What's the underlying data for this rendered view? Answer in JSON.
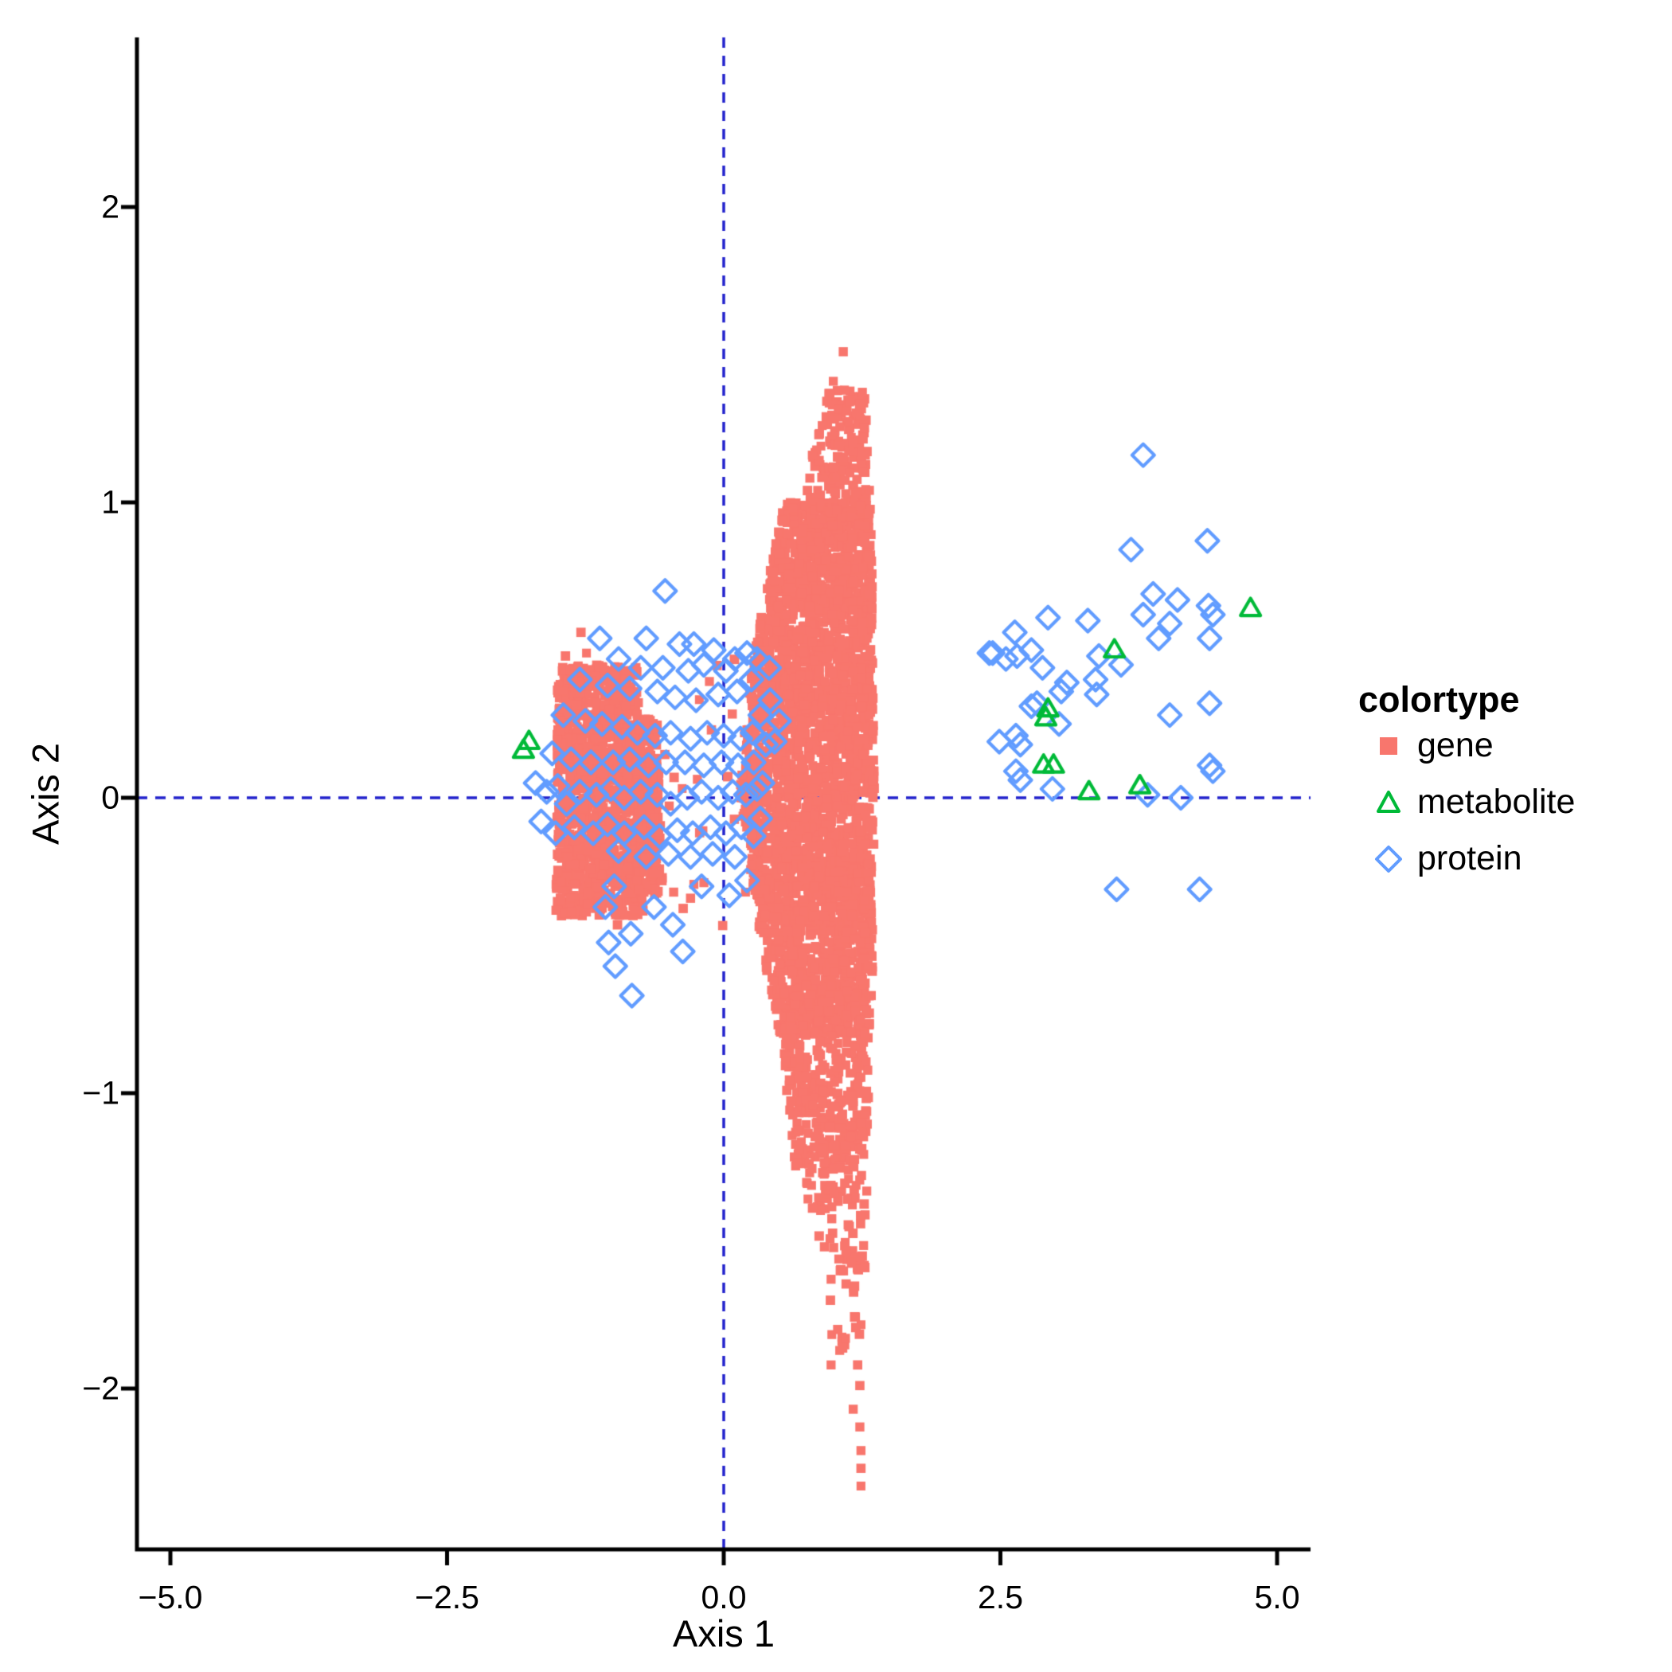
{
  "chart_data": {
    "type": "scatter",
    "title": "",
    "xlabel": "Axis 1",
    "ylabel": "Axis 2",
    "xlim": [
      -5.3,
      5.3
    ],
    "ylim": [
      -2.55,
      2.57
    ],
    "grid": false,
    "x_ticks": {
      "values": [
        -5.0,
        -2.5,
        0.0,
        2.5,
        5.0
      ],
      "labels": [
        "−5.0",
        "−2.5",
        "0.0",
        "2.5",
        "5.0"
      ]
    },
    "y_ticks": {
      "values": [
        -2,
        -1,
        0,
        1,
        2
      ],
      "labels": [
        "−2",
        "−1",
        "0",
        "1",
        "2"
      ]
    },
    "reference_lines": {
      "vertical_x": 0,
      "horizontal_y": 0,
      "style": "dashed",
      "color": "#2121CC"
    },
    "colors": {
      "gene": "#F8766D",
      "metabolite": "#00BA38",
      "protein": "#619CFF",
      "axis": "#000000",
      "background": "#FFFFFF"
    },
    "legend": {
      "title": "colortype",
      "position": "right",
      "entries": [
        {
          "label": "gene",
          "marker": "filled-square",
          "color": "#F8766D"
        },
        {
          "label": "metabolite",
          "marker": "open-triangle",
          "color": "#00BA38"
        },
        {
          "label": "protein",
          "marker": "open-diamond",
          "color": "#619CFF"
        }
      ]
    },
    "series": [
      {
        "name": "gene",
        "marker": "filled-square",
        "color": "#F8766D",
        "note": "Dense overplotted cloud of thousands of points: a solid left block (x -1.5..-0.6, y -0.4..0.45) and a large slanted right band (x 0.15..1.36, y -1.9..1.4) with a sparse tail down to y=-2.33; reproduced via region densities plus visible outliers.",
        "dense_bands": [
          {
            "y": [
              1.0,
              1.38
            ],
            "x_left": [
              0.7,
              0.95
            ],
            "x_right": [
              1.33,
              1.27
            ],
            "count": 150
          },
          {
            "y": [
              0.5,
              1.0
            ],
            "x_left": [
              0.27,
              0.55
            ],
            "x_right": [
              1.35,
              1.33
            ],
            "count": 800
          },
          {
            "y": [
              0.0,
              0.5
            ],
            "x_left": [
              0.15,
              0.27
            ],
            "x_right": [
              1.36,
              1.35
            ],
            "count": 900
          },
          {
            "y": [
              -0.45,
              0.0
            ],
            "x_left": [
              0.32,
              0.15
            ],
            "x_right": [
              1.35,
              1.36
            ],
            "count": 820
          },
          {
            "y": [
              -0.8,
              -0.45
            ],
            "x_left": [
              0.5,
              0.32
            ],
            "x_right": [
              1.33,
              1.35
            ],
            "count": 500
          },
          {
            "y": [
              -1.25,
              -0.8
            ],
            "x_left": [
              0.62,
              0.52
            ],
            "x_right": [
              1.3,
              1.33
            ],
            "count": 280
          },
          {
            "y": [
              -1.62,
              -1.25
            ],
            "x_left": [
              0.88,
              0.7
            ],
            "x_right": [
              1.28,
              1.3
            ],
            "count": 80
          },
          {
            "y": [
              -1.88,
              -1.62
            ],
            "x_left": [
              0.95,
              0.92
            ],
            "x_right": [
              1.25,
              1.28
            ],
            "count": 16
          },
          {
            "y": [
              -0.4,
              0.45
            ],
            "x_left": [
              -1.52,
              -1.5
            ],
            "x_right": [
              -0.72,
              -0.78
            ],
            "count": 1150
          },
          {
            "y": [
              -0.33,
              0.27
            ],
            "x_left": [
              -0.8,
              -0.77
            ],
            "x_right": [
              -0.55,
              -0.6
            ],
            "count": 240
          },
          {
            "y": [
              -0.55,
              0.5
            ],
            "x_left": [
              -0.58,
              -0.55
            ],
            "x_right": [
              0.24,
              0.2
            ],
            "count": 24
          }
        ],
        "outlier_points": [
          [
            1.08,
            1.51
          ],
          [
            0.99,
            1.41
          ],
          [
            1.09,
            1.38
          ],
          [
            1.11,
            1.31
          ],
          [
            0.89,
            1.26
          ],
          [
            0.8,
            1.16
          ],
          [
            1.08,
            1.15
          ],
          [
            0.99,
            1.12
          ],
          [
            1.14,
            1.1
          ],
          [
            -1.29,
            0.56
          ],
          [
            -1.43,
            0.48
          ],
          [
            -1.24,
            0.49
          ],
          [
            -1.23,
            -0.36
          ],
          [
            -0.96,
            -0.43
          ],
          [
            -0.3,
            -0.34
          ],
          [
            -1.47,
            -0.35
          ],
          [
            0.97,
            -1.63
          ],
          [
            1.03,
            -1.8
          ],
          [
            1.1,
            -1.83
          ],
          [
            0.97,
            -1.92
          ],
          [
            1.21,
            -1.92
          ],
          [
            1.23,
            -1.99
          ],
          [
            1.17,
            -2.07
          ],
          [
            1.23,
            -2.13
          ],
          [
            1.24,
            -2.21
          ],
          [
            1.24,
            -2.27
          ],
          [
            1.24,
            -2.33
          ]
        ]
      },
      {
        "name": "metabolite",
        "marker": "open-triangle",
        "color": "#00BA38",
        "points": [
          [
            -1.81,
            0.16
          ],
          [
            -1.76,
            0.19
          ],
          [
            2.93,
            0.3
          ],
          [
            2.91,
            0.27
          ],
          [
            2.89,
            0.11
          ],
          [
            2.98,
            0.11
          ],
          [
            3.3,
            0.02
          ],
          [
            3.76,
            0.04
          ],
          [
            3.53,
            0.5
          ],
          [
            4.76,
            0.64
          ]
        ]
      },
      {
        "name": "protein",
        "marker": "open-diamond",
        "color": "#619CFF",
        "points": [
          [
            -0.53,
            0.7
          ],
          [
            -1.12,
            0.54
          ],
          [
            -0.7,
            0.54
          ],
          [
            -0.4,
            0.52
          ],
          [
            -0.27,
            0.52
          ],
          [
            -0.09,
            0.5
          ],
          [
            0.21,
            0.49
          ],
          [
            -0.95,
            0.47
          ],
          [
            -0.75,
            0.44
          ],
          [
            -0.55,
            0.44
          ],
          [
            -0.32,
            0.43
          ],
          [
            -0.18,
            0.45
          ],
          [
            0.02,
            0.43
          ],
          [
            0.1,
            0.47
          ],
          [
            0.3,
            0.47
          ],
          [
            0.41,
            0.44
          ],
          [
            0.25,
            0.4
          ],
          [
            -1.3,
            0.4
          ],
          [
            -1.05,
            0.38
          ],
          [
            -0.85,
            0.37
          ],
          [
            -0.6,
            0.36
          ],
          [
            -0.44,
            0.34
          ],
          [
            -0.25,
            0.33
          ],
          [
            -0.05,
            0.35
          ],
          [
            0.12,
            0.36
          ],
          [
            0.42,
            0.33
          ],
          [
            0.5,
            0.26
          ],
          [
            0.46,
            0.19
          ],
          [
            -1.45,
            0.28
          ],
          [
            -1.25,
            0.26
          ],
          [
            -1.1,
            0.25
          ],
          [
            -0.92,
            0.24
          ],
          [
            -0.78,
            0.22
          ],
          [
            -0.62,
            0.21
          ],
          [
            -0.48,
            0.22
          ],
          [
            -0.3,
            0.2
          ],
          [
            -0.15,
            0.22
          ],
          [
            0.0,
            0.21
          ],
          [
            0.15,
            0.2
          ],
          [
            0.26,
            0.22
          ],
          [
            0.33,
            0.28
          ],
          [
            -1.55,
            0.15
          ],
          [
            -1.38,
            0.13
          ],
          [
            -1.2,
            0.12
          ],
          [
            -1.0,
            0.12
          ],
          [
            -0.85,
            0.13
          ],
          [
            -0.68,
            0.11
          ],
          [
            -0.52,
            0.12
          ],
          [
            -0.35,
            0.12
          ],
          [
            -0.18,
            0.11
          ],
          [
            -0.02,
            0.12
          ],
          [
            0.13,
            0.11
          ],
          [
            0.27,
            0.12
          ],
          [
            0.38,
            0.18
          ],
          [
            -1.7,
            0.05
          ],
          [
            -1.6,
            0.02
          ],
          [
            -1.5,
            0.04
          ],
          [
            -1.42,
            -0.02
          ],
          [
            -1.3,
            0.02
          ],
          [
            -1.15,
            0.01
          ],
          [
            -1.02,
            0.03
          ],
          [
            -0.9,
            0.0
          ],
          [
            -0.75,
            0.02
          ],
          [
            -0.6,
            0.01
          ],
          [
            -0.48,
            -0.02
          ],
          [
            -0.33,
            0.0
          ],
          [
            -0.2,
            0.02
          ],
          [
            -0.05,
            0.0
          ],
          [
            0.08,
            0.02
          ],
          [
            0.2,
            0.01
          ],
          [
            0.3,
            0.03
          ],
          [
            0.35,
            0.05
          ],
          [
            -1.65,
            -0.08
          ],
          [
            -1.52,
            -0.12
          ],
          [
            -1.35,
            -0.1
          ],
          [
            -1.18,
            -0.12
          ],
          [
            -1.05,
            -0.09
          ],
          [
            -0.9,
            -0.12
          ],
          [
            -0.72,
            -0.1
          ],
          [
            -0.58,
            -0.13
          ],
          [
            -0.42,
            -0.11
          ],
          [
            -0.28,
            -0.12
          ],
          [
            -0.12,
            -0.1
          ],
          [
            0.02,
            -0.12
          ],
          [
            0.16,
            -0.1
          ],
          [
            0.27,
            -0.13
          ],
          [
            0.33,
            -0.07
          ],
          [
            -0.95,
            -0.18
          ],
          [
            -0.7,
            -0.2
          ],
          [
            -0.5,
            -0.19
          ],
          [
            -0.3,
            -0.2
          ],
          [
            -0.1,
            -0.19
          ],
          [
            0.1,
            -0.2
          ],
          [
            -0.99,
            -0.3
          ],
          [
            -1.07,
            -0.37
          ],
          [
            -0.63,
            -0.37
          ],
          [
            -0.46,
            -0.43
          ],
          [
            -1.04,
            -0.49
          ],
          [
            -0.84,
            -0.46
          ],
          [
            -0.37,
            -0.52
          ],
          [
            -0.98,
            -0.57
          ],
          [
            -0.83,
            -0.67
          ],
          [
            0.21,
            -0.28
          ],
          [
            0.05,
            -0.33
          ],
          [
            -0.2,
            -0.3
          ],
          [
            3.79,
            1.16
          ],
          [
            3.68,
            0.84
          ],
          [
            4.37,
            0.87
          ],
          [
            3.88,
            0.69
          ],
          [
            4.1,
            0.67
          ],
          [
            4.38,
            0.65
          ],
          [
            4.42,
            0.62
          ],
          [
            3.79,
            0.62
          ],
          [
            4.03,
            0.59
          ],
          [
            3.93,
            0.54
          ],
          [
            4.39,
            0.54
          ],
          [
            2.93,
            0.61
          ],
          [
            3.29,
            0.6
          ],
          [
            2.63,
            0.56
          ],
          [
            2.4,
            0.49
          ],
          [
            2.65,
            0.48
          ],
          [
            2.78,
            0.5
          ],
          [
            3.39,
            0.48
          ],
          [
            3.59,
            0.45
          ],
          [
            3.36,
            0.4
          ],
          [
            3.1,
            0.39
          ],
          [
            3.05,
            0.36
          ],
          [
            3.37,
            0.35
          ],
          [
            2.43,
            0.49
          ],
          [
            2.55,
            0.47
          ],
          [
            2.88,
            0.44
          ],
          [
            2.49,
            0.19
          ],
          [
            2.64,
            0.21
          ],
          [
            2.68,
            0.18
          ],
          [
            2.78,
            0.31
          ],
          [
            2.83,
            0.32
          ],
          [
            3.03,
            0.25
          ],
          [
            4.03,
            0.28
          ],
          [
            4.39,
            0.32
          ],
          [
            2.64,
            0.09
          ],
          [
            2.68,
            0.06
          ],
          [
            2.97,
            0.03
          ],
          [
            3.83,
            0.01
          ],
          [
            4.13,
            0.0
          ],
          [
            4.39,
            0.11
          ],
          [
            4.42,
            0.09
          ],
          [
            3.55,
            -0.31
          ],
          [
            4.3,
            -0.31
          ]
        ]
      }
    ]
  }
}
